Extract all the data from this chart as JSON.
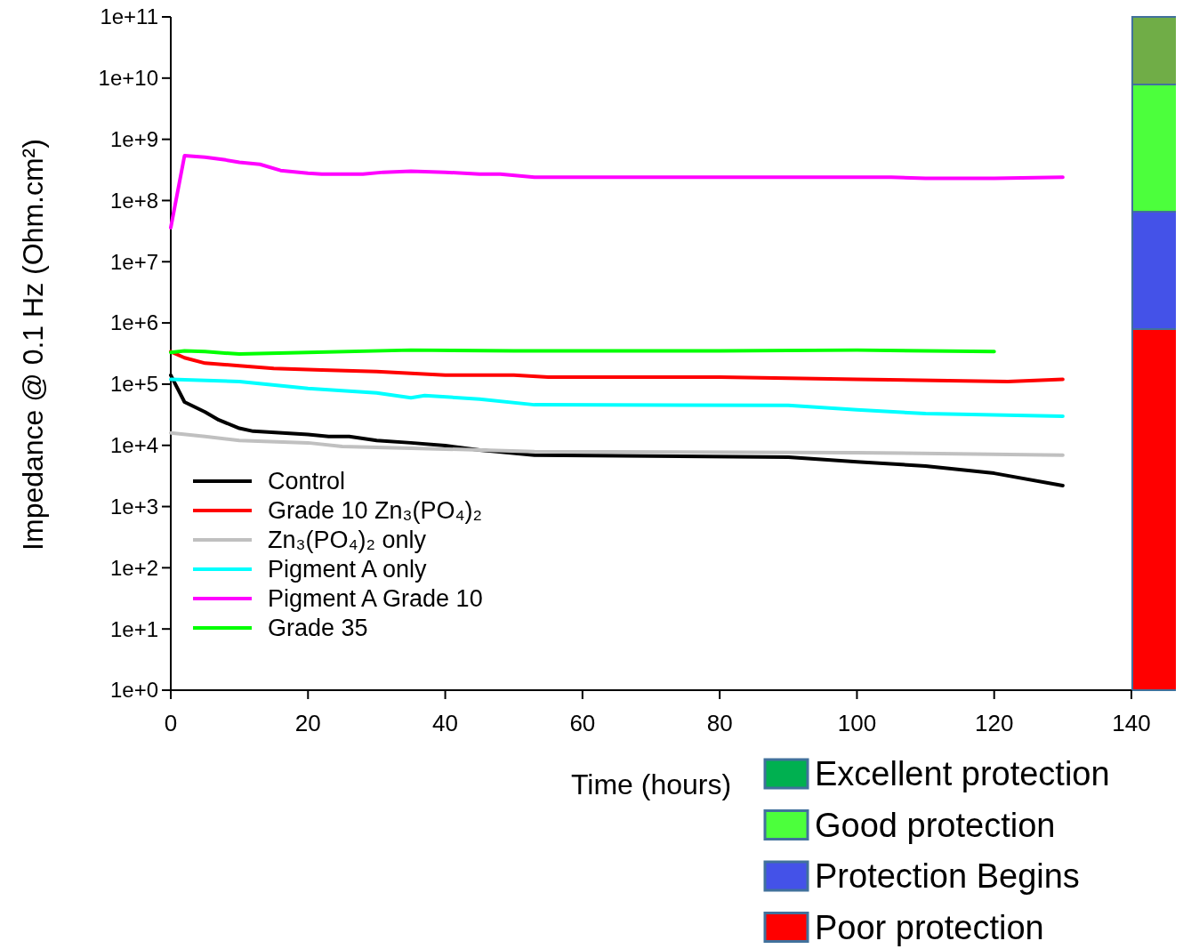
{
  "chart_data": {
    "type": "line",
    "xlabel": "Time (hours)",
    "ylabel": "Impedance @ 0.1 Hz (Ohm.cm²)",
    "log": "y",
    "xlim": [
      0,
      140
    ],
    "xticks": [
      0,
      20,
      40,
      60,
      80,
      100,
      120,
      140
    ],
    "ylim": [
      1,
      100000000000
    ],
    "yticks": [
      {
        "value": 1,
        "label": "1e+0"
      },
      {
        "value": 10,
        "label": "1e+1"
      },
      {
        "value": 100,
        "label": "1e+2"
      },
      {
        "value": 1000,
        "label": "1e+3"
      },
      {
        "value": 10000,
        "label": "1e+4"
      },
      {
        "value": 100000,
        "label": "1e+5"
      },
      {
        "value": 1000000,
        "label": "1e+6"
      },
      {
        "value": 10000000,
        "label": "1e+7"
      },
      {
        "value": 100000000,
        "label": "1e+8"
      },
      {
        "value": 1000000000,
        "label": "1e+9"
      },
      {
        "value": 10000000000,
        "label": "1e+10"
      },
      {
        "value": 100000000000,
        "label": "1e+11"
      }
    ],
    "grid": false,
    "legend": "bottom left",
    "marker": "none",
    "line_style": "solid",
    "series": [
      {
        "name": "Control",
        "color": "#000000",
        "x": [
          0,
          2,
          5,
          7,
          10,
          12,
          20,
          23,
          26,
          30,
          35,
          40,
          45,
          53,
          90,
          100,
          110,
          120,
          130
        ],
        "values": [
          140000,
          51000,
          35000,
          26000,
          19000,
          17000,
          15000,
          14000,
          14000,
          12000,
          11000,
          9900,
          8400,
          6900,
          6400,
          5400,
          4600,
          3500,
          2200
        ]
      },
      {
        "name": "Grade 10 Zn₃(PO₄)₂",
        "color": "#ff0000",
        "x": [
          0,
          2,
          5,
          10,
          15,
          22,
          30,
          40,
          50,
          55,
          80,
          100,
          122,
          130
        ],
        "values": [
          340000,
          270000,
          220000,
          200000,
          180000,
          170000,
          160000,
          140000,
          140000,
          130000,
          130000,
          120000,
          110000,
          120000
        ]
      },
      {
        "name": "Zn₃(PO₄)₂ only",
        "color": "#c0c0c0",
        "x": [
          0,
          5,
          10,
          20,
          25,
          40,
          53,
          100,
          130
        ],
        "values": [
          16000,
          14000,
          12000,
          11000,
          9600,
          8700,
          7900,
          7600,
          6900
        ]
      },
      {
        "name": "Pigment A only",
        "color": "#00ffff",
        "x": [
          0,
          10,
          20,
          30,
          35,
          37,
          45,
          53,
          90,
          100,
          110,
          130
        ],
        "values": [
          120000,
          110000,
          85000,
          72000,
          60000,
          65000,
          57000,
          46000,
          45000,
          38000,
          33000,
          30000
        ]
      },
      {
        "name": "Pigment A Grade 10",
        "color": "#ff00ff",
        "x": [
          0,
          2,
          5,
          8,
          10,
          13,
          16,
          20,
          22,
          25,
          28,
          31,
          35,
          40,
          45,
          48,
          53,
          70,
          90,
          105,
          110,
          120,
          130
        ],
        "values": [
          36000000,
          540000000,
          510000000,
          460000000,
          420000000,
          390000000,
          310000000,
          280000000,
          270000000,
          270000000,
          270000000,
          290000000,
          300000000,
          290000000,
          270000000,
          270000000,
          240000000,
          240000000,
          240000000,
          240000000,
          230000000,
          230000000,
          240000000
        ]
      },
      {
        "name": "Grade 35",
        "color": "#00ff00",
        "x": [
          0,
          2,
          5,
          10,
          20,
          35,
          50,
          80,
          100,
          120
        ],
        "values": [
          330000,
          350000,
          340000,
          310000,
          330000,
          360000,
          350000,
          350000,
          360000,
          340000
        ]
      }
    ],
    "annotations": [
      "Excellent protection",
      "Good protection",
      "Protection Begins",
      "Poor protection"
    ]
  }
}
